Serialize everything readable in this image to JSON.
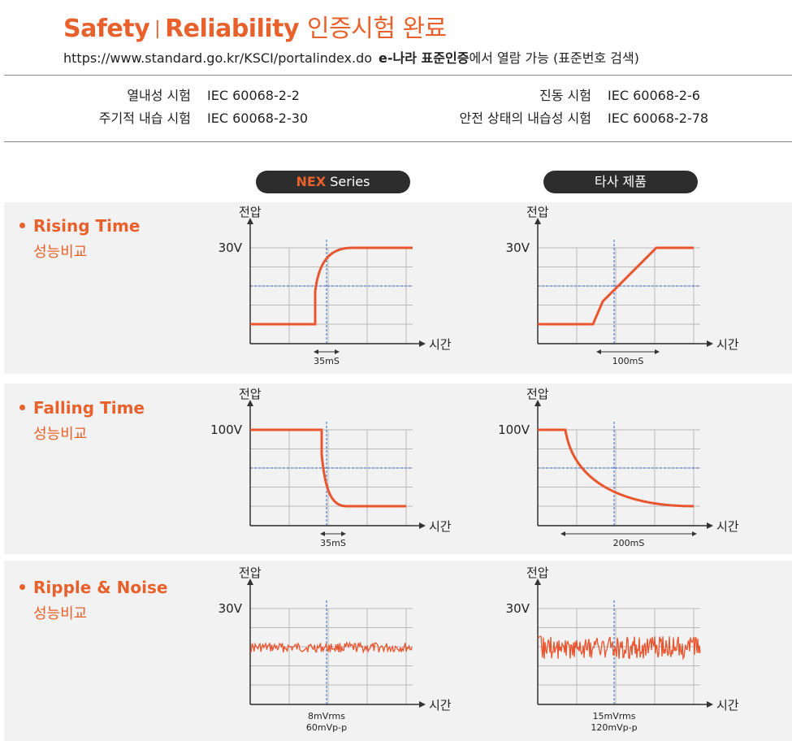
{
  "header": {
    "title_safety": "Safety",
    "title_sep": "|",
    "title_reliability": "Reliability",
    "title_kr": "인증시험 완료",
    "url": "https://www.standard.go.kr/KSCI/portalindex.do",
    "portal_name": "e-나라 표준인증",
    "portal_suffix": "에서 열람 가능 (표준번호 검색)"
  },
  "tests": {
    "left": [
      {
        "label": "열내성 시험",
        "standard": "IEC 60068-2-2"
      },
      {
        "label": "주기적 내습 시험",
        "standard": "IEC 60068-2-30"
      }
    ],
    "right": [
      {
        "label": "진동 시험",
        "standard": "IEC 60068-2-6"
      },
      {
        "label": "안전 상태의 내습성 시험",
        "standard": "IEC 60068-2-78"
      }
    ]
  },
  "columns": {
    "nex_bold": "NEX",
    "nex_rest": " Series",
    "other": "타사 제품"
  },
  "rows": [
    {
      "title": "Rising Time",
      "subtitle": "성능비교"
    },
    {
      "title": "Falling Time",
      "subtitle": "성능비교"
    },
    {
      "title": "Ripple & Noise",
      "subtitle": "성능비교"
    }
  ],
  "axis": {
    "y_label": "전압",
    "x_label": "시간"
  },
  "colors": {
    "accent": "#e8612c",
    "curve": "#e8552f",
    "grid": "#b9b9b9",
    "center_line": "#2a62c9",
    "pill": "#2d2d2d"
  },
  "chart_data": [
    {
      "type": "line",
      "row": "Rising Time",
      "product": "NEX Series",
      "y_tick": "30V",
      "shape": "rise-fast",
      "annotation": [
        "35mS"
      ]
    },
    {
      "type": "line",
      "row": "Rising Time",
      "product": "타사 제품",
      "y_tick": "30V",
      "shape": "rise-ramp",
      "annotation": [
        "100mS"
      ]
    },
    {
      "type": "line",
      "row": "Falling Time",
      "product": "NEX Series",
      "y_tick": "100V",
      "shape": "fall-fast",
      "annotation": [
        "35mS"
      ]
    },
    {
      "type": "line",
      "row": "Falling Time",
      "product": "타사 제품",
      "y_tick": "100V",
      "shape": "fall-slow",
      "annotation": [
        "200mS"
      ]
    },
    {
      "type": "line",
      "row": "Ripple & Noise",
      "product": "NEX Series",
      "y_tick": "30V",
      "shape": "noise-small",
      "annotation": [
        "8mVrms",
        "60mVp-p"
      ]
    },
    {
      "type": "line",
      "row": "Ripple & Noise",
      "product": "타사 제품",
      "y_tick": "30V",
      "shape": "noise-large",
      "annotation": [
        "15mVrms",
        "120mVp-p"
      ]
    }
  ]
}
